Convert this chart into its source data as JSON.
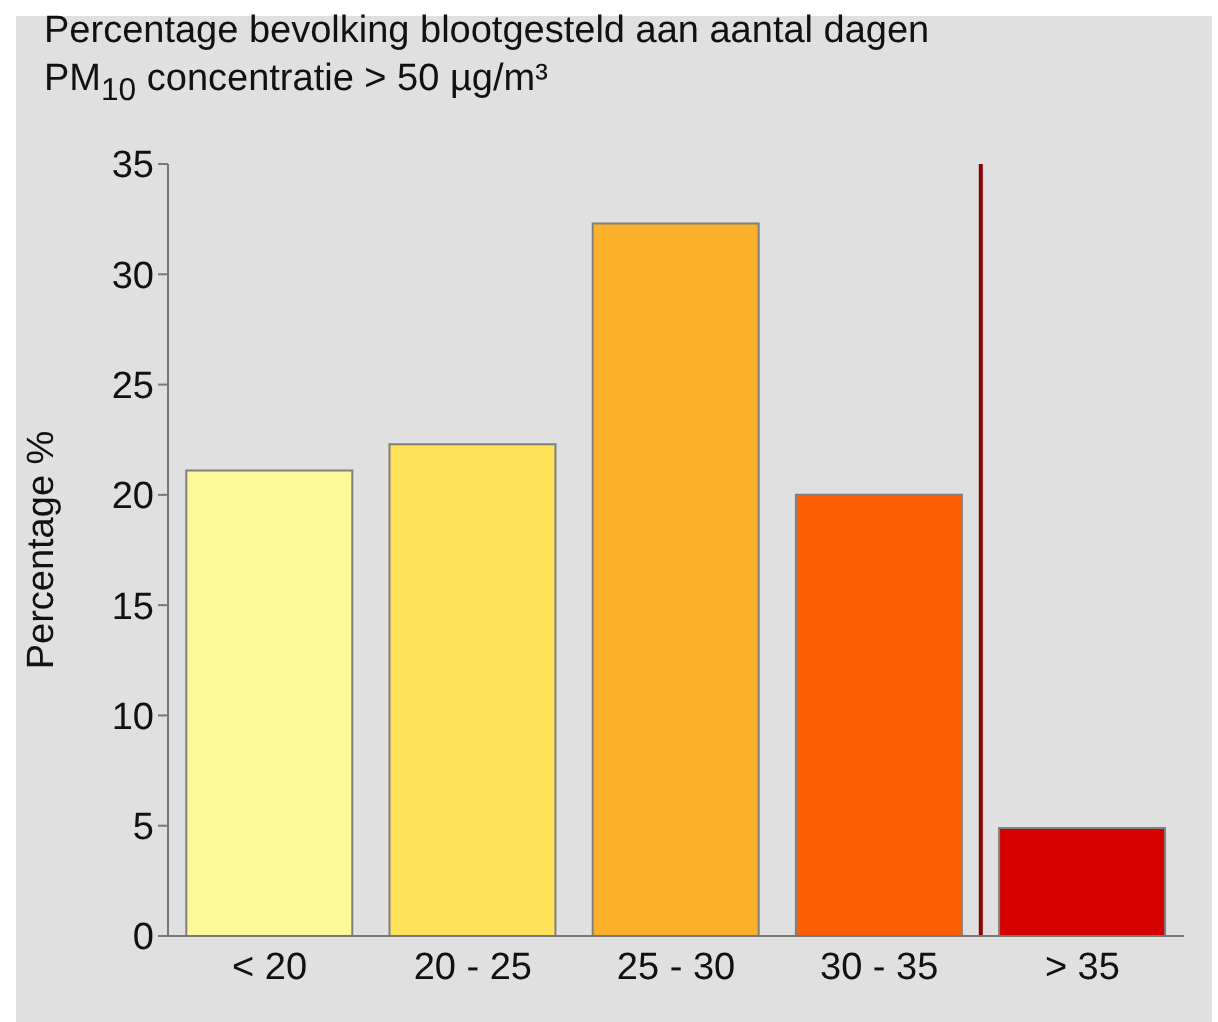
{
  "chart_data": {
    "type": "bar",
    "title": "Percentage bevolking blootgesteld aan aantal dagen PM$_{10}$ concentratie > 50 µg/m³",
    "ylabel": "Percentage %",
    "categories": [
      "< 20",
      "20 - 25",
      "25 - 30",
      "30 - 35",
      "> 35"
    ],
    "values": [
      21.1,
      22.3,
      32.3,
      20.0,
      4.9
    ],
    "colors": [
      "#fdf99a",
      "#fde25a",
      "#fdb02a",
      "#fd5f04",
      "#d40000"
    ],
    "ylim": [
      0,
      35
    ],
    "yticks": [
      0,
      5,
      10,
      15,
      20,
      25,
      30,
      35
    ],
    "grid": false,
    "ref_lines": [
      {
        "axis": "x",
        "value": "> 35",
        "color": "#8b0000"
      }
    ]
  }
}
